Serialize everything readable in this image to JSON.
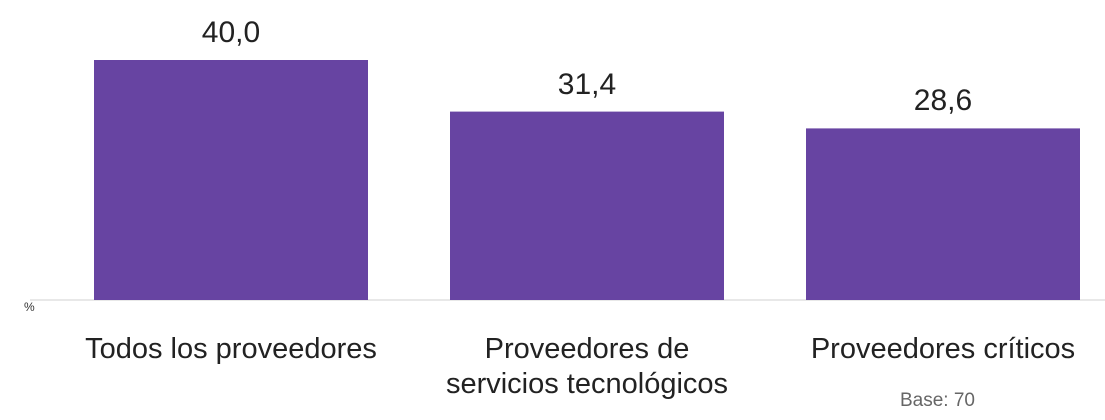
{
  "chart_data": {
    "type": "bar",
    "categories": [
      "Todos los proveedores",
      "Proveedores de\nservicios tecnológicos",
      "Proveedores críticos"
    ],
    "values": [
      40.0,
      31.4,
      28.6
    ],
    "value_labels": [
      "40,0",
      "31,4",
      "28,6"
    ],
    "color": "#6744a2",
    "y_label": "%",
    "note": "Base: 70"
  }
}
